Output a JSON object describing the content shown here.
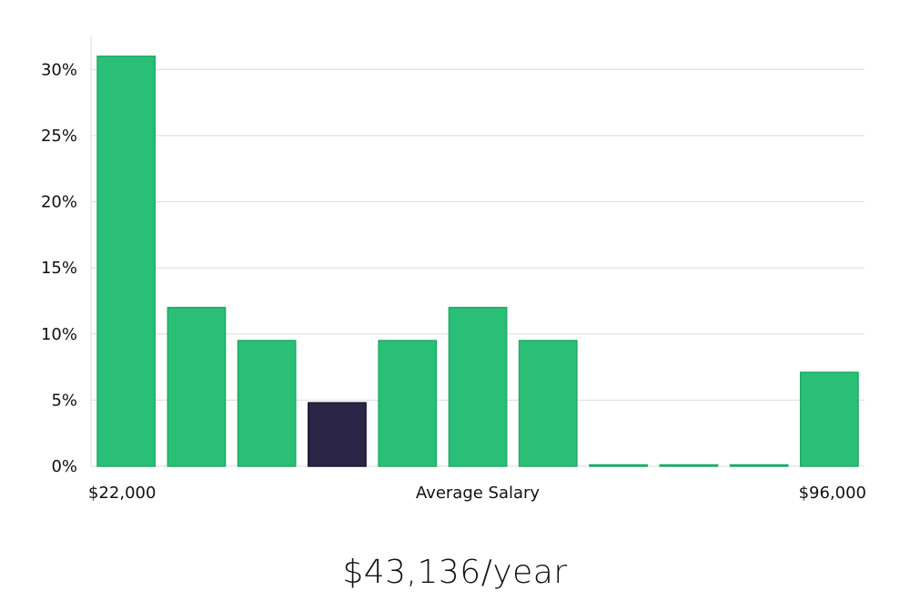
{
  "chart_data": {
    "type": "bar",
    "categories": [
      "1",
      "2",
      "3",
      "4",
      "5",
      "6",
      "7",
      "8",
      "9",
      "10",
      "11"
    ],
    "values": [
      31,
      12,
      9.5,
      4.8,
      9.5,
      12,
      9.5,
      0,
      0,
      0,
      7.1
    ],
    "highlight_index": 3,
    "ylim": [
      0,
      32.5
    ],
    "yticks": [
      {
        "value": 0,
        "label": "0%"
      },
      {
        "value": 5,
        "label": "5%"
      },
      {
        "value": 10,
        "label": "10%"
      },
      {
        "value": 15,
        "label": "15%"
      },
      {
        "value": 20,
        "label": "20%"
      },
      {
        "value": 25,
        "label": "25%"
      },
      {
        "value": 30,
        "label": "30%"
      }
    ],
    "x_left_label": "$22,000",
    "x_center_label": "Average Salary",
    "x_right_label": "$96,000",
    "grid": true,
    "colors": {
      "bar": "#2abf77",
      "bar_stroke": "#20aa68",
      "highlight": "#2b2647",
      "highlight_stroke": "#1a1533",
      "grid": "#dcdcdc",
      "axis": "#dcdcdc"
    }
  },
  "summary": {
    "average_salary": "$43,136/year"
  }
}
